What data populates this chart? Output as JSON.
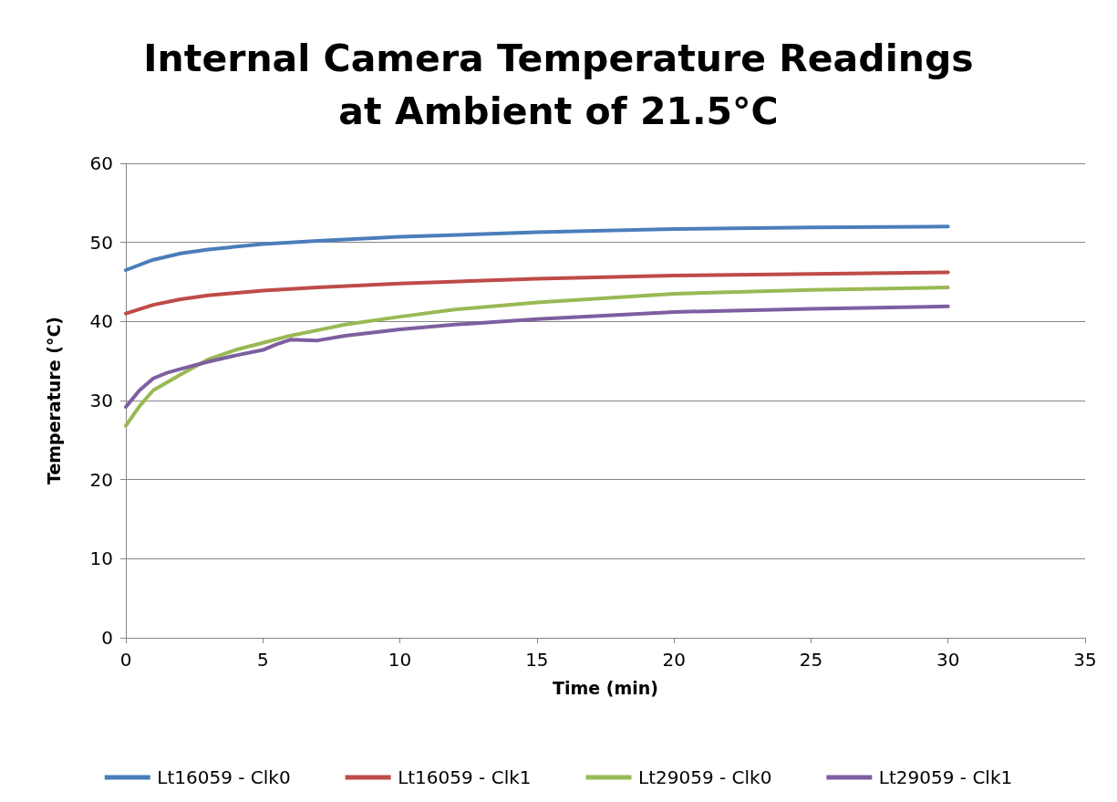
{
  "chart_data": {
    "type": "line",
    "title": "Internal Camera Temperature Readings\nat Ambient of 21.5°C",
    "xlabel": "Time (min)",
    "ylabel": "Temperature (°C)",
    "xlim": [
      0,
      35
    ],
    "xticks": [
      0,
      5,
      10,
      15,
      20,
      25,
      30,
      35
    ],
    "ylim": [
      0,
      60
    ],
    "yticks": [
      0,
      10,
      20,
      30,
      40,
      50,
      60
    ],
    "grid": "y",
    "legend": "bottom",
    "marker": "none",
    "line_style": "solid",
    "series": [
      {
        "name": "Lt16059 - Clk0",
        "color": "#4a7ebb",
        "x": [
          0,
          1,
          2,
          3,
          5,
          7,
          10,
          15,
          20,
          25,
          30
        ],
        "values": [
          46.5,
          47.8,
          48.6,
          49.1,
          49.8,
          50.2,
          50.7,
          51.3,
          51.7,
          51.9,
          52.0
        ]
      },
      {
        "name": "Lt16059 - Clk1",
        "color": "#be4b48",
        "x": [
          0,
          1,
          2,
          3,
          5,
          7,
          10,
          15,
          20,
          25,
          30
        ],
        "values": [
          41.0,
          42.1,
          42.8,
          43.3,
          43.9,
          44.3,
          44.8,
          45.4,
          45.8,
          46.0,
          46.2
        ]
      },
      {
        "name": "Lt29059 - Clk0",
        "color": "#98b954",
        "x": [
          0,
          0.5,
          1,
          2,
          3,
          4,
          5,
          6,
          7,
          8,
          10,
          12,
          15,
          20,
          25,
          30
        ],
        "values": [
          26.8,
          29.3,
          31.3,
          33.3,
          35.2,
          36.4,
          37.3,
          38.2,
          38.9,
          39.6,
          40.6,
          41.5,
          42.4,
          43.5,
          44.0,
          44.3
        ]
      },
      {
        "name": "Lt29059 - Clk1",
        "color": "#7d5fa0",
        "x": [
          0,
          0.5,
          1,
          1.5,
          2,
          3,
          4,
          5,
          5.5,
          6,
          7,
          8,
          10,
          12,
          15,
          20,
          25,
          30
        ],
        "values": [
          29.2,
          31.3,
          32.8,
          33.5,
          34.0,
          34.9,
          35.7,
          36.4,
          37.1,
          37.7,
          37.6,
          38.2,
          39.0,
          39.6,
          40.3,
          41.2,
          41.6,
          41.9
        ]
      }
    ]
  }
}
